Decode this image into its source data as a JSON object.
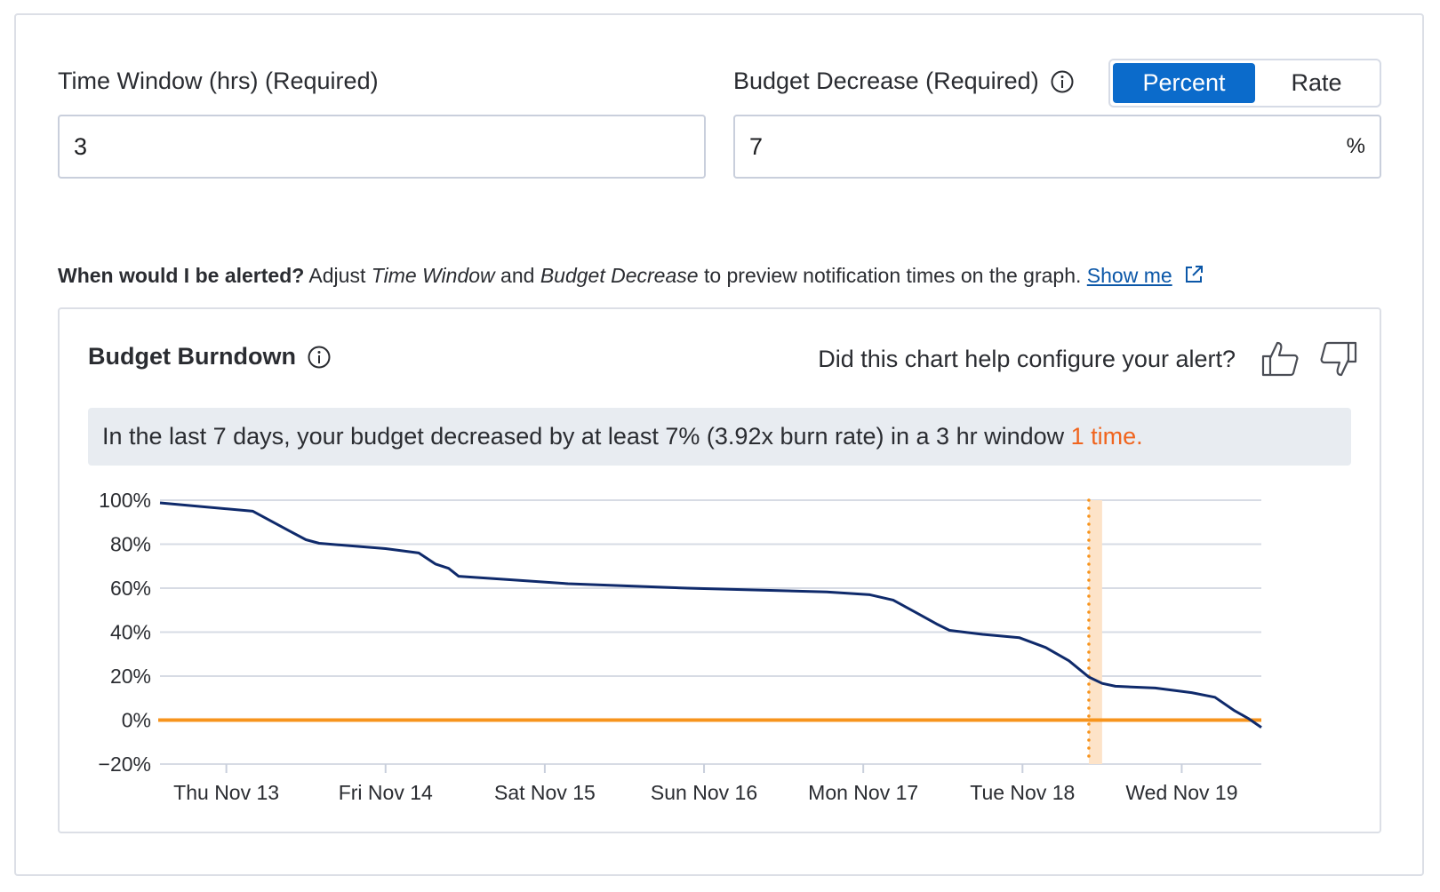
{
  "form": {
    "time_window": {
      "label": "Time Window (hrs) (Required)",
      "value": "3"
    },
    "budget_decrease": {
      "label": "Budget Decrease (Required)",
      "value": "7",
      "unit": "%"
    },
    "mode_toggle": {
      "options": [
        "Percent",
        "Rate"
      ],
      "selected": "Percent"
    }
  },
  "hint": {
    "lead": "When would I be alerted?",
    "t1": "Adjust",
    "em1": "Time Window",
    "t2": "and",
    "em2": "Budget Decrease",
    "t3": "to preview notification times on the graph.",
    "link": "Show me"
  },
  "chart_card": {
    "title": "Budget Burndown",
    "feedback_question": "Did this chart help configure your alert?",
    "banner_text": "In the last 7 days, your budget decreased by at least 7% (3.92x burn rate) in a 3 hr window",
    "banner_highlight": "1 time."
  },
  "colors": {
    "accent": "#0b6bcb",
    "line": "#0f2a6b",
    "threshold": "#f7941d",
    "alert_band": "#fde3c8",
    "highlight": "#f0641e"
  },
  "chart_data": {
    "type": "line",
    "title": "",
    "xlabel": "",
    "ylabel": "",
    "ylim": [
      -20,
      100
    ],
    "yticks": [
      "100%",
      "80%",
      "60%",
      "40%",
      "20%",
      "0%",
      "−20%"
    ],
    "ytick_values": [
      100,
      80,
      60,
      40,
      20,
      0,
      -20
    ],
    "xlim": [
      "Nov 12 14:00",
      "Nov 19 12:00"
    ],
    "xticks": [
      "Thu Nov 13",
      "Fri Nov 14",
      "Sat Nov 15",
      "Sun Nov 16",
      "Mon Nov 17",
      "Tue Nov 18",
      "Wed Nov 19"
    ],
    "xtick_values": [
      "Nov 13 00:00",
      "Nov 14 00:00",
      "Nov 15 00:00",
      "Nov 16 00:00",
      "Nov 17 00:00",
      "Nov 18 00:00",
      "Nov 19 00:00"
    ],
    "grid": true,
    "threshold": 0,
    "alert_window": [
      "Nov 18 10:00",
      "Nov 18 12:00"
    ],
    "series": [
      {
        "x": [
          "Nov 12 14:00",
          "Nov 13 04:00",
          "Nov 13 09:30",
          "Nov 13 12:00",
          "Nov 13 14:00",
          "Nov 14 00:00",
          "Nov 14 05:00",
          "Nov 14 07:30",
          "Nov 14 09:30",
          "Nov 14 11:00",
          "Nov 14 18:00",
          "Nov 15 03:30",
          "Nov 15 21:30",
          "Nov 16 18:30",
          "Nov 17 01:00",
          "Nov 17 04:30",
          "Nov 17 08:00",
          "Nov 17 11:00",
          "Nov 17 13:00",
          "Nov 17 18:00",
          "Nov 17 23:30",
          "Nov 18 03:30",
          "Nov 18 07:00",
          "Nov 18 10:00",
          "Nov 18 12:00",
          "Nov 18 14:00",
          "Nov 18 20:00",
          "Nov 19 01:30",
          "Nov 19 05:00",
          "Nov 19 08:00",
          "Nov 19 10:00",
          "Nov 19 12:00"
        ],
        "y": [
          98.8,
          95,
          86,
          82,
          80.4,
          78,
          76,
          71,
          69,
          65.4,
          64,
          62,
          60,
          58.3,
          57,
          54.6,
          48.8,
          43.8,
          40.8,
          39,
          37.5,
          33,
          27,
          19.6,
          16.7,
          15.4,
          14.6,
          12.5,
          10.4,
          4.2,
          0.8,
          -3.3
        ]
      }
    ]
  }
}
